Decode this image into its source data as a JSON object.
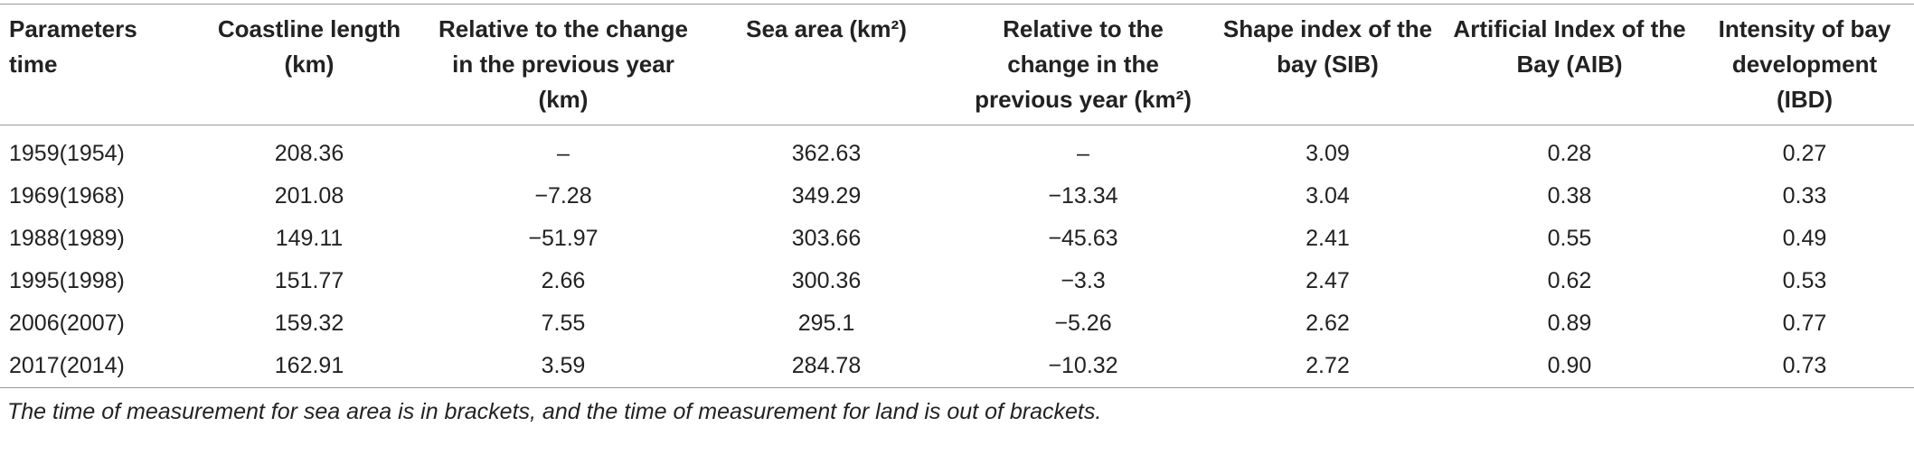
{
  "table": {
    "header": [
      "Parameters time",
      "Coastline length (km)",
      "Relative to the change in the previous year (km)",
      "Sea area (km²)",
      "Relative to the change in the previous year (km²)",
      "Shape index of the bay (SIB)",
      "Artificial Index of the Bay (AIB)",
      "Intensity of bay development (IBD)"
    ],
    "rows": [
      [
        "1959(1954)",
        "208.36",
        "–",
        "362.63",
        "–",
        "3.09",
        "0.28",
        "0.27"
      ],
      [
        "1969(1968)",
        "201.08",
        "−7.28",
        "349.29",
        "−13.34",
        "3.04",
        "0.38",
        "0.33"
      ],
      [
        "1988(1989)",
        "149.11",
        "−51.97",
        "303.66",
        "−45.63",
        "2.41",
        "0.55",
        "0.49"
      ],
      [
        "1995(1998)",
        "151.77",
        "2.66",
        "300.36",
        "−3.3",
        "2.47",
        "0.62",
        "0.53"
      ],
      [
        "2006(2007)",
        "159.32",
        "7.55",
        "295.1",
        "−5.26",
        "2.62",
        "0.89",
        "0.77"
      ],
      [
        "2017(2014)",
        "162.91",
        "3.59",
        "284.78",
        "−10.32",
        "2.72",
        "0.90",
        "0.73"
      ]
    ]
  },
  "footnote": "The time of measurement for sea area is in brackets, and the time of measurement for land is out of brackets."
}
